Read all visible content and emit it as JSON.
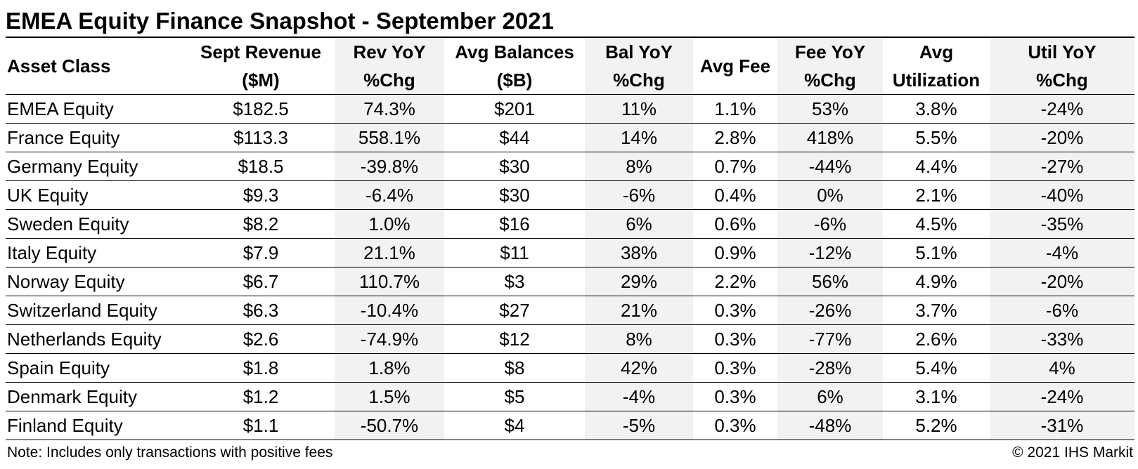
{
  "title": "EMEA Equity Finance Snapshot - September 2021",
  "table": {
    "headers": [
      [
        "Asset Class"
      ],
      [
        "Sept Revenue",
        "($M)"
      ],
      [
        "Rev YoY",
        "%Chg"
      ],
      [
        "Avg Balances",
        "($B)"
      ],
      [
        "Bal YoY",
        "%Chg"
      ],
      [
        "Avg Fee"
      ],
      [
        "Fee YoY",
        "%Chg"
      ],
      [
        "Avg",
        "Utilization"
      ],
      [
        "Util YoY",
        "%Chg"
      ]
    ],
    "rows": [
      [
        "EMEA Equity",
        "$182.5",
        "74.3%",
        "$201",
        "11%",
        "1.1%",
        "53%",
        "3.8%",
        "-24%"
      ],
      [
        "France Equity",
        "$113.3",
        "558.1%",
        "$44",
        "14%",
        "2.8%",
        "418%",
        "5.5%",
        "-20%"
      ],
      [
        "Germany Equity",
        "$18.5",
        "-39.8%",
        "$30",
        "8%",
        "0.7%",
        "-44%",
        "4.4%",
        "-27%"
      ],
      [
        "UK Equity",
        "$9.3",
        "-6.4%",
        "$30",
        "-6%",
        "0.4%",
        "0%",
        "2.1%",
        "-40%"
      ],
      [
        "Sweden Equity",
        "$8.2",
        "1.0%",
        "$16",
        "6%",
        "0.6%",
        "-6%",
        "4.5%",
        "-35%"
      ],
      [
        "Italy Equity",
        "$7.9",
        "21.1%",
        "$11",
        "38%",
        "0.9%",
        "-12%",
        "5.1%",
        "-4%"
      ],
      [
        "Norway Equity",
        "$6.7",
        "110.7%",
        "$3",
        "29%",
        "2.2%",
        "56%",
        "4.9%",
        "-20%"
      ],
      [
        "Switzerland Equity",
        "$6.3",
        "-10.4%",
        "$27",
        "21%",
        "0.3%",
        "-26%",
        "3.7%",
        "-6%"
      ],
      [
        "Netherlands Equity",
        "$2.6",
        "-74.9%",
        "$12",
        "8%",
        "0.3%",
        "-77%",
        "2.6%",
        "-33%"
      ],
      [
        "Spain Equity",
        "$1.8",
        "1.8%",
        "$8",
        "42%",
        "0.3%",
        "-28%",
        "5.4%",
        "4%"
      ],
      [
        "Denmark Equity",
        "$1.2",
        "1.5%",
        "$5",
        "-4%",
        "0.3%",
        "6%",
        "3.1%",
        "-24%"
      ],
      [
        "Finland Equity",
        "$1.1",
        "-50.7%",
        "$4",
        "-5%",
        "0.3%",
        "-48%",
        "5.2%",
        "-31%"
      ]
    ]
  },
  "footer": {
    "note": "Note: Includes only transactions with positive fees",
    "copyright": "© 2021 IHS Markit"
  },
  "colors": {
    "shaded_column": "#f2f2f2",
    "rule": "#000000"
  }
}
